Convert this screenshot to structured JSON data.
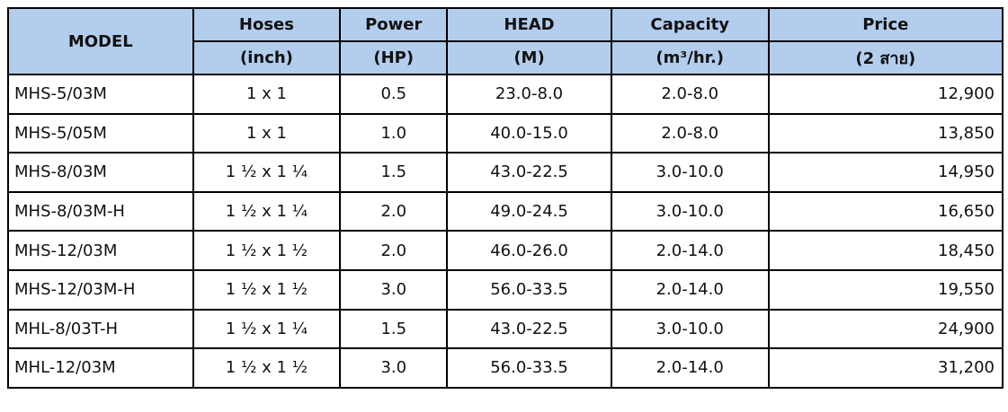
{
  "table": {
    "header": {
      "model": "MODEL",
      "columns": [
        "Hoses",
        "Power",
        "HEAD",
        "Capacity",
        "Price"
      ],
      "units": [
        "(inch)",
        "(HP)",
        "(M)",
        "(m³/hr.)",
        "(2 สาย)"
      ]
    },
    "rows": [
      [
        "MHS-5/03M",
        "1 x 1",
        "0.5",
        "23.0-8.0",
        "2.0-8.0",
        "12,900"
      ],
      [
        "MHS-5/05M",
        "1 x 1",
        "1.0",
        "40.0-15.0",
        "2.0-8.0",
        "13,850"
      ],
      [
        "MHS-8/03M",
        "1 ½  x 1 ¼",
        "1.5",
        "43.0-22.5",
        "3.0-10.0",
        "14,950"
      ],
      [
        "MHS-8/03M-H",
        "1 ½  x 1 ¼",
        "2.0",
        "49.0-24.5",
        "3.0-10.0",
        "16,650"
      ],
      [
        "MHS-12/03M",
        "1 ½  x 1 ½",
        "2.0",
        "46.0-26.0",
        "2.0-14.0",
        "18,450"
      ],
      [
        "MHS-12/03M-H",
        "1 ½  x 1 ½",
        "3.0",
        "56.0-33.5",
        "2.0-14.0",
        "19,550"
      ],
      [
        "MHL-8/03T-H",
        "1 ½ x 1 ¼",
        "1.5",
        "43.0-22.5",
        "3.0-10.0",
        "24,900"
      ],
      [
        "MHL-12/03M",
        "1 ½  x 1 ½",
        "3.0",
        "56.0-33.5",
        "2.0-14.0",
        "31,200"
      ]
    ]
  }
}
